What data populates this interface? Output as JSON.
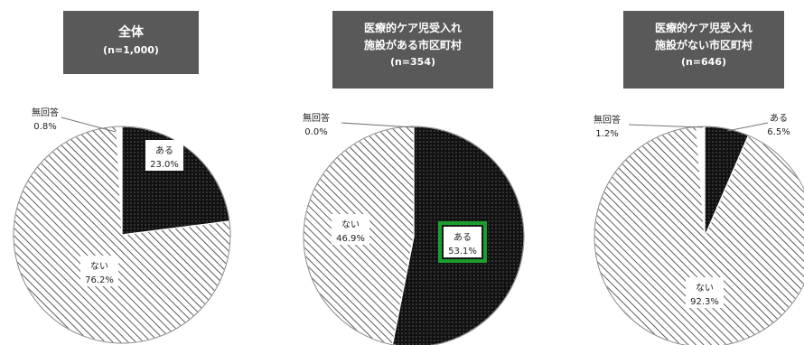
{
  "chart_data": [
    {
      "type": "pie",
      "title_lines": [
        "全体",
        "(n=1,000)"
      ],
      "slices": [
        {
          "label": "ある",
          "value": 23.0,
          "value_text": "23.0%",
          "fill": "dots"
        },
        {
          "label": "ない",
          "value": 76.2,
          "value_text": "76.2%",
          "fill": "hatch"
        },
        {
          "label": "無回答",
          "value": 0.8,
          "value_text": "0.8%",
          "fill": "white"
        }
      ]
    },
    {
      "type": "pie",
      "title_lines": [
        "医療的ケア児受入れ",
        "施設がある市区町村",
        "(n=354)"
      ],
      "slices": [
        {
          "label": "ある",
          "value": 53.1,
          "value_text": "53.1%",
          "fill": "dots",
          "highlighted": true
        },
        {
          "label": "ない",
          "value": 46.9,
          "value_text": "46.9%",
          "fill": "hatch"
        },
        {
          "label": "無回答",
          "value": 0.0,
          "value_text": "0.0%",
          "fill": "white"
        }
      ]
    },
    {
      "type": "pie",
      "title_lines": [
        "医療的ケア児受入れ",
        "施設がない市区町村",
        "(n=646)"
      ],
      "slices": [
        {
          "label": "ある",
          "value": 6.5,
          "value_text": "6.5%",
          "fill": "dots"
        },
        {
          "label": "ない",
          "value": 92.3,
          "value_text": "92.3%",
          "fill": "hatch"
        },
        {
          "label": "無回答",
          "value": 1.2,
          "value_text": "1.2%",
          "fill": "white"
        }
      ]
    }
  ],
  "colors": {
    "title_bg": "#595959",
    "highlight": "#1a9e2e",
    "slice_dark": "#111111"
  }
}
